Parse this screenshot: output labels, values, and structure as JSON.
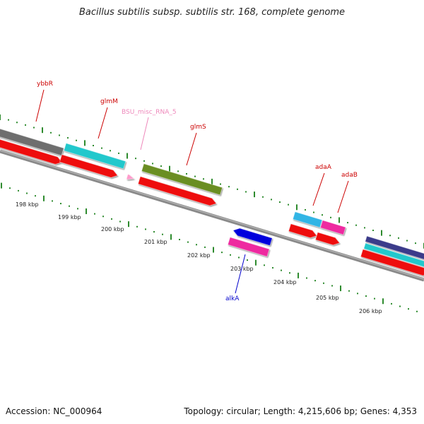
{
  "title": "Bacillus subtilis subsp. subtilis str. 168, complete genome",
  "footer": {
    "accession": "Accession: NC_000964",
    "summary": "Topology: circular; Length: 4,215,606 bp; Genes: 4,353"
  },
  "kbp_labels": [
    "198 kbp",
    "199 kbp",
    "200 kbp",
    "201 kbp",
    "202 kbp",
    "203 kbp",
    "204 kbp",
    "205 kbp",
    "206 kbp"
  ],
  "gene_labels": [
    {
      "name": "ybbR",
      "color": "#cc0000"
    },
    {
      "name": "glmM",
      "color": "#cc0000"
    },
    {
      "name": "BSU_misc_RNA_5",
      "color": "#ee88bb"
    },
    {
      "name": "glmS",
      "color": "#cc0000"
    },
    {
      "name": "adaA",
      "color": "#cc0000"
    },
    {
      "name": "adaB",
      "color": "#cc0000"
    },
    {
      "name": "alkA",
      "color": "#0000cc"
    }
  ],
  "colors": {
    "backbone": "#8a8a8a",
    "tick": "#2e8b2e",
    "cds": "#ee1111",
    "gray_gene": "#6e6e6e",
    "cyan_gene": "#22c8cc",
    "olive_gene": "#6b8e23",
    "skyblue_gene": "#33b5e5",
    "magenta_gene": "#ee2ca0",
    "blue_gene": "#0000dd",
    "navy_gene": "#3a3a8a",
    "pink_rna": "#ff9ccc"
  }
}
